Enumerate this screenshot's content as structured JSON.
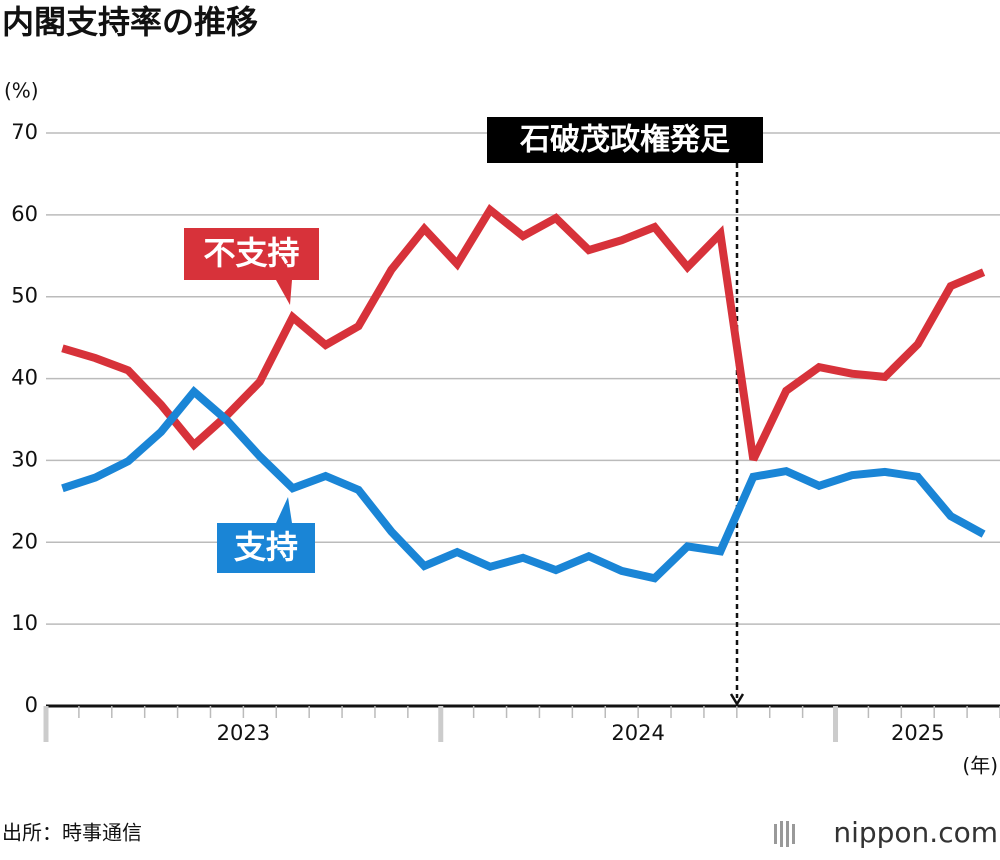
{
  "chart_data": {
    "type": "line",
    "title": "内閣支持率の推移",
    "y_unit": "(%)",
    "x_unit": "(年)",
    "categories": [
      "2023",
      "2023",
      "2023",
      "2023",
      "2023",
      "2023",
      "2023",
      "2023",
      "2023",
      "2023",
      "2023",
      "2023",
      "2024",
      "2024",
      "2024",
      "2024",
      "2024",
      "2024",
      "2024",
      "2024",
      "2024",
      "2024",
      "2024",
      "2024",
      "2025",
      "2025",
      "2025",
      "2025",
      "2025"
    ],
    "series": [
      {
        "name": "不支持",
        "color": "#d7323a",
        "values": [
          43.7,
          42.5,
          41.0,
          36.8,
          31.9,
          35.5,
          39.6,
          47.5,
          44.1,
          46.4,
          53.3,
          58.3,
          54.0,
          60.6,
          57.4,
          59.6,
          55.7,
          56.9,
          58.5,
          53.6,
          57.7,
          30.1,
          38.5,
          41.4,
          40.6,
          40.2,
          44.2,
          51.3,
          53.0
        ]
      },
      {
        "name": "支持",
        "color": "#1a85d6",
        "values": [
          26.6,
          27.9,
          29.9,
          33.5,
          38.4,
          34.9,
          30.5,
          26.6,
          28.1,
          26.4,
          21.3,
          17.1,
          18.8,
          17.0,
          18.1,
          16.6,
          18.3,
          16.5,
          15.6,
          19.5,
          18.9,
          28.0,
          28.7,
          26.9,
          28.2,
          28.6,
          28.0,
          23.2,
          21.0
        ]
      }
    ],
    "annotation": "石破茂政権発足",
    "ylim": [
      0,
      70
    ],
    "yticks": [
      0,
      10,
      20,
      30,
      40,
      50,
      60,
      70
    ],
    "grid": true,
    "source": "出所：時事通信",
    "logo": "nippon.com"
  }
}
